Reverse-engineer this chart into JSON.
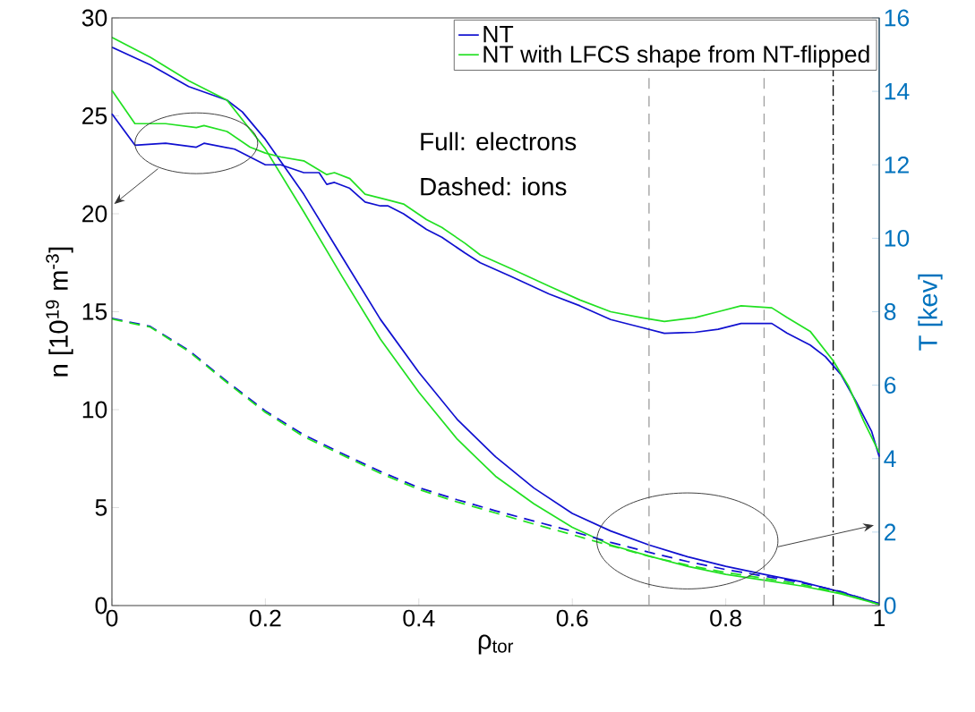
{
  "chart_data": {
    "type": "line",
    "xlabel": "ρ$_{tor}$",
    "ylabel": "n [10$^{19}$ m$^{-3}$]",
    "y2label": "T [kev]",
    "xlim": [
      0,
      1
    ],
    "ylim": [
      0,
      30
    ],
    "y2lim": [
      0,
      16
    ],
    "xticks": [
      0,
      0.2,
      0.4,
      0.6,
      0.8,
      1
    ],
    "yticks": [
      0,
      5,
      10,
      15,
      20,
      25,
      30
    ],
    "y2ticks": [
      0,
      2,
      4,
      6,
      8,
      10,
      12,
      14,
      16
    ],
    "legend": "top right",
    "annotations": [
      "Full: electrons",
      "Dashed: ions"
    ],
    "ref_lines": [
      {
        "axis": "x",
        "value": 0.7,
        "color": "#a0a0a0",
        "line_style": "dashed"
      },
      {
        "axis": "x",
        "value": 0.85,
        "color": "#a0a0a0",
        "line_style": "dashed"
      },
      {
        "axis": "x",
        "value": 0.94,
        "color": "#000000",
        "line_style": "dashdot"
      }
    ],
    "series": [
      {
        "name": "NT",
        "color": "#1010d0",
        "line_style": "solid",
        "x": [
          0,
          0.03,
          0.07,
          0.11,
          0.12,
          0.16,
          0.18,
          0.2,
          0.22,
          0.25,
          0.27,
          0.28,
          0.29,
          0.31,
          0.33,
          0.35,
          0.36,
          0.38,
          0.41,
          0.43,
          0.46,
          0.48,
          0.52,
          0.57,
          0.61,
          0.65,
          0.69,
          0.72,
          0.76,
          0.79,
          0.82,
          0.86,
          0.88,
          0.91,
          0.93,
          0.95,
          0.97,
          0.99,
          1.0
        ],
        "values": [
          25.1,
          23.5,
          23.6,
          23.4,
          23.6,
          23.3,
          22.9,
          22.5,
          22.5,
          22.1,
          22.1,
          21.5,
          21.6,
          21.3,
          20.6,
          20.4,
          20.4,
          20.0,
          19.2,
          18.8,
          18.0,
          17.5,
          16.8,
          15.9,
          15.3,
          14.6,
          14.2,
          13.9,
          13.95,
          14.1,
          14.4,
          14.4,
          13.9,
          13.3,
          12.7,
          11.8,
          10.4,
          8.9,
          7.6
        ]
      },
      {
        "name": "NT with LFCS shape from NT-flipped",
        "color": "#22e022",
        "line_style": "solid",
        "x": [
          0,
          0.03,
          0.07,
          0.11,
          0.12,
          0.15,
          0.18,
          0.2,
          0.22,
          0.25,
          0.28,
          0.29,
          0.31,
          0.33,
          0.36,
          0.38,
          0.41,
          0.43,
          0.46,
          0.48,
          0.52,
          0.57,
          0.61,
          0.65,
          0.69,
          0.72,
          0.76,
          0.79,
          0.82,
          0.86,
          0.88,
          0.91,
          0.94,
          0.96,
          0.98,
          1.0
        ],
        "values": [
          26.3,
          24.6,
          24.6,
          24.4,
          24.5,
          24.2,
          23.4,
          23.1,
          22.9,
          22.7,
          22.0,
          22.1,
          21.8,
          21.0,
          20.7,
          20.5,
          19.7,
          19.3,
          18.5,
          17.9,
          17.2,
          16.3,
          15.6,
          15.0,
          14.7,
          14.5,
          14.7,
          15.0,
          15.3,
          15.2,
          14.7,
          14.0,
          12.5,
          11.2,
          9.4,
          7.8
        ]
      },
      {
        "color": "#1010d0",
        "line_style": "solid",
        "axis": "y2",
        "x": [
          0,
          0.05,
          0.1,
          0.15,
          0.17,
          0.2,
          0.25,
          0.3,
          0.35,
          0.4,
          0.45,
          0.5,
          0.55,
          0.6,
          0.65,
          0.7,
          0.75,
          0.8,
          0.85,
          0.9,
          0.95,
          1.0
        ],
        "values": [
          15.2,
          14.72,
          14.13,
          13.76,
          13.44,
          12.69,
          11.2,
          9.49,
          7.79,
          6.35,
          5.07,
          4.05,
          3.2,
          2.51,
          2.03,
          1.65,
          1.33,
          1.07,
          0.85,
          0.64,
          0.37,
          0.05
        ]
      },
      {
        "color": "#22e022",
        "line_style": "solid",
        "axis": "y2",
        "x": [
          0,
          0.05,
          0.1,
          0.15,
          0.2,
          0.25,
          0.3,
          0.35,
          0.4,
          0.45,
          0.5,
          0.55,
          0.6,
          0.65,
          0.7,
          0.75,
          0.8,
          0.85,
          0.9,
          0.95,
          1.0
        ],
        "values": [
          15.47,
          14.93,
          14.29,
          13.76,
          12.43,
          10.72,
          8.96,
          7.25,
          5.81,
          4.53,
          3.52,
          2.77,
          2.13,
          1.65,
          1.35,
          1.07,
          0.85,
          0.69,
          0.53,
          0.32,
          0.03
        ]
      },
      {
        "color": "#1010d0",
        "line_style": "dashed",
        "axis": "y2",
        "x": [
          0,
          0.05,
          0.1,
          0.15,
          0.2,
          0.25,
          0.3,
          0.35,
          0.4,
          0.45,
          0.5,
          0.55,
          0.6,
          0.65,
          0.7,
          0.75,
          0.8,
          0.85,
          0.9,
          0.95,
          1.0
        ],
        "values": [
          7.82,
          7.6,
          6.95,
          6.1,
          5.3,
          4.65,
          4.14,
          3.65,
          3.21,
          2.88,
          2.58,
          2.3,
          2.02,
          1.72,
          1.45,
          1.2,
          0.98,
          0.8,
          0.62,
          0.38,
          0.05
        ]
      },
      {
        "color": "#22e022",
        "line_style": "dashed",
        "axis": "y2",
        "x": [
          0,
          0.05,
          0.1,
          0.15,
          0.2,
          0.25,
          0.3,
          0.35,
          0.4,
          0.45,
          0.5,
          0.55,
          0.6,
          0.65,
          0.7,
          0.75,
          0.8,
          0.85,
          0.9,
          0.95,
          1.0
        ],
        "values": [
          7.8,
          7.58,
          6.92,
          6.07,
          5.26,
          4.6,
          4.1,
          3.6,
          3.16,
          2.82,
          2.52,
          2.22,
          1.93,
          1.63,
          1.34,
          1.1,
          0.9,
          0.74,
          0.57,
          0.34,
          0.03
        ]
      }
    ]
  }
}
